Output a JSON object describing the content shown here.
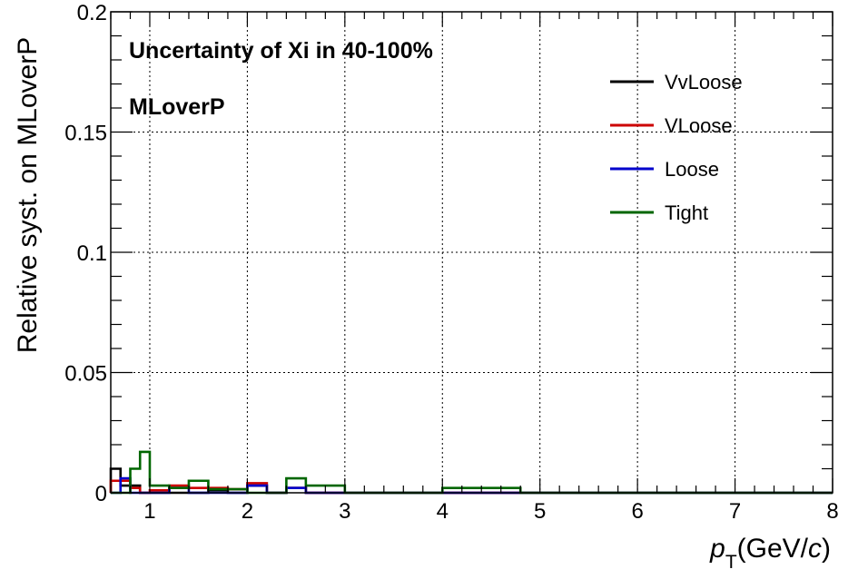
{
  "chart_data": {
    "type": "histogram",
    "annotations": [
      "Uncertainty of Xi in 40-100%",
      "MLoverP"
    ],
    "ylabel": "Relative syst. on MLoverP",
    "xlabel_main": "p",
    "xlabel_sub": "T",
    "xlabel_unit_prefix": "(GeV/",
    "xlabel_unit_var": "c",
    "xlabel_unit_suffix": ")",
    "xlim": [
      0.6,
      8
    ],
    "ylim": [
      0,
      0.2
    ],
    "xticks": [
      1,
      2,
      3,
      4,
      5,
      6,
      7,
      8
    ],
    "xtick_labels": [
      "1",
      "2",
      "3",
      "4",
      "5",
      "6",
      "7",
      "8"
    ],
    "yticks": [
      0,
      0.05,
      0.1,
      0.15,
      0.2
    ],
    "ytick_labels": [
      "0",
      "0.05",
      "0.1",
      "0.15",
      "0.2"
    ],
    "grid": true,
    "legend_position": "top-right",
    "bin_edges": [
      0.6,
      0.7,
      0.8,
      0.9,
      1.0,
      1.2,
      1.4,
      1.6,
      1.8,
      2.0,
      2.2,
      2.4,
      2.6,
      2.8,
      3.0,
      3.2,
      3.4,
      3.6,
      3.8,
      4.0,
      4.2,
      4.4,
      4.6,
      4.8,
      5.0,
      6.0,
      8.0
    ],
    "series": [
      {
        "name": "VvLoose",
        "color": "#000000",
        "values": [
          0.01,
          0.003,
          0.003,
          0.0,
          0.0,
          0.0,
          0.0,
          0.001,
          0.0,
          0.003,
          0.0,
          0.002,
          0.0,
          0.0,
          0.0,
          0.0,
          0.0,
          0.0,
          0.0,
          0.0,
          0.0,
          0.0,
          0.0,
          0.0,
          0.0,
          0.0
        ]
      },
      {
        "name": "VLoose",
        "color": "#cc0000",
        "values": [
          0.005,
          0.005,
          0.002,
          0.0,
          0.001,
          0.003,
          0.002,
          0.002,
          0.0015,
          0.004,
          0.0,
          0.002,
          0.0,
          0.0,
          0.0,
          0.0,
          0.0,
          0.0,
          0.0,
          0.0,
          0.0,
          0.0,
          0.0,
          0.0,
          0.0,
          0.0
        ]
      },
      {
        "name": "Loose",
        "color": "#0000cc",
        "values": [
          0.0,
          0.006,
          0.0,
          0.0,
          0.0,
          0.002,
          0.0,
          0.0,
          0.0,
          0.003,
          0.0,
          0.002,
          0.0,
          0.0,
          0.0,
          0.0,
          0.0,
          0.0,
          0.0,
          0.0,
          0.0,
          0.0,
          0.0,
          0.0,
          0.0,
          0.0
        ]
      },
      {
        "name": "Tight",
        "color": "#006600",
        "values": [
          0.0,
          0.0,
          0.01,
          0.017,
          0.003,
          0.002,
          0.005,
          0.0015,
          0.0015,
          0.0,
          0.0,
          0.006,
          0.003,
          0.003,
          0.0,
          0.0,
          0.0,
          0.0,
          0.0,
          0.002,
          0.002,
          0.002,
          0.002,
          0.0,
          0.0,
          0.0
        ]
      }
    ]
  }
}
